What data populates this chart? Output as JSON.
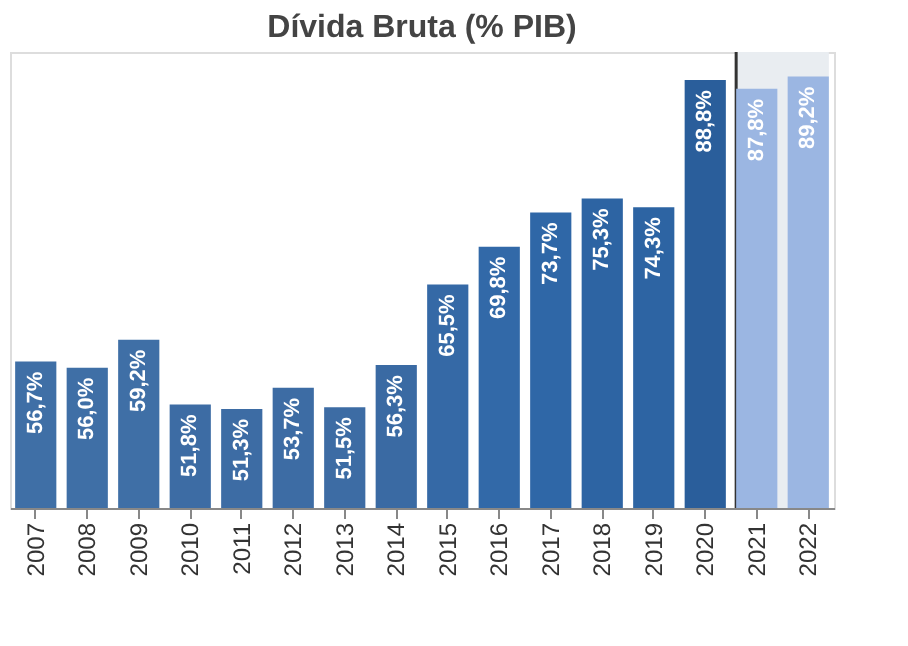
{
  "chart_data": {
    "type": "bar",
    "title": "Dívida Bruta (% PIB)",
    "categories": [
      "2007",
      "2008",
      "2009",
      "2010",
      "2011",
      "2012",
      "2013",
      "2014",
      "2015",
      "2016",
      "2017",
      "2018",
      "2019",
      "2020",
      "2021",
      "2022"
    ],
    "values": [
      56.7,
      56.0,
      59.2,
      51.8,
      51.3,
      53.7,
      51.5,
      56.3,
      65.5,
      69.8,
      73.7,
      75.3,
      74.3,
      88.8,
      87.8,
      89.2
    ],
    "value_labels": [
      "56,7%",
      "56,0%",
      "59,2%",
      "51,8%",
      "51,3%",
      "53,7%",
      "51,5%",
      "56,3%",
      "65,5%",
      "69,8%",
      "73,7%",
      "75,3%",
      "74,3%",
      "88,8%",
      "87,8%",
      "89,2%"
    ],
    "colors": [
      "#3f6fa6",
      "#3f6fa6",
      "#3f6fa6",
      "#3d6ca4",
      "#3d6ca4",
      "#3d6ca4",
      "#3d6ca4",
      "#3a6aa3",
      "#3569a6",
      "#3269a8",
      "#2f67a7",
      "#2d64a3",
      "#2d64a3",
      "#2a5e9b",
      "#9bb6e2",
      "#9bb6e2"
    ],
    "ylim": [
      40,
      92
    ],
    "tick_labels": "x",
    "bands": [
      {
        "axis": "x",
        "from": "2021",
        "to": "2022",
        "color": "#e9edf1"
      }
    ],
    "ref_lines": [
      {
        "axis": "x",
        "value": "2021",
        "color": "#333333"
      }
    ]
  }
}
